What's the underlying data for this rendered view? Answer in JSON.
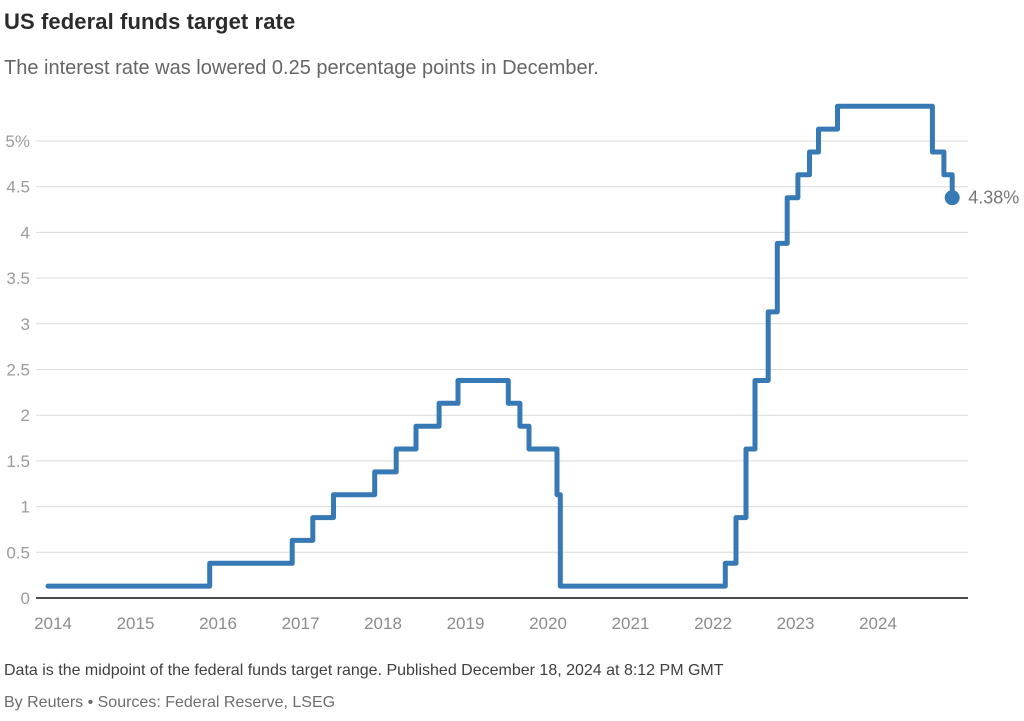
{
  "header": {
    "title": "US federal funds target rate",
    "subtitle": "The interest rate was lowered 0.25 percentage points in December."
  },
  "footer": {
    "note": "Data is the midpoint of the federal funds target range. Published December 18, 2024 at 8:12 PM GMT",
    "byline": "By Reuters • Sources: Federal Reserve, LSEG"
  },
  "colors": {
    "line": "#3679b5",
    "grid": "#d9d9d9",
    "axis": "#4b4b4b",
    "ytick_text": "#9b9b9b",
    "xtick_text": "#8c8c8c",
    "endpoint_text": "#767676"
  },
  "chart_data": {
    "type": "line",
    "variant": "step",
    "title": "US federal funds target rate",
    "subtitle": "The interest rate was lowered 0.25 percentage points in December.",
    "ylabel": "",
    "xlabel": "",
    "unit": "%",
    "ylim": [
      0,
      5.5
    ],
    "xlim": [
      2014,
      2025
    ],
    "grid": "horizontal-only",
    "legend_position": "none",
    "x_ticks": [
      "2014",
      "2015",
      "2016",
      "2017",
      "2018",
      "2019",
      "2020",
      "2021",
      "2022",
      "2023",
      "2024"
    ],
    "y_ticks": [
      {
        "v": 0,
        "label": "0"
      },
      {
        "v": 0.5,
        "label": "0.5"
      },
      {
        "v": 1,
        "label": "1"
      },
      {
        "v": 1.5,
        "label": "1.5"
      },
      {
        "v": 2,
        "label": "2"
      },
      {
        "v": 2.5,
        "label": "2.5"
      },
      {
        "v": 3,
        "label": "3"
      },
      {
        "v": 3.5,
        "label": "3.5"
      },
      {
        "v": 4,
        "label": "4"
      },
      {
        "v": 4.5,
        "label": "4.5"
      },
      {
        "v": 5,
        "label": "5%"
      }
    ],
    "series": [
      {
        "name": "Federal funds target rate (midpoint)",
        "end_year": 2024.96,
        "end_label": "4.38%",
        "steps": [
          {
            "date": "2014-01",
            "year": 2014.0,
            "rate": 0.13
          },
          {
            "date": "2015-12",
            "year": 2015.96,
            "rate": 0.38
          },
          {
            "date": "2016-12",
            "year": 2016.96,
            "rate": 0.63
          },
          {
            "date": "2017-03",
            "year": 2017.21,
            "rate": 0.88
          },
          {
            "date": "2017-06",
            "year": 2017.46,
            "rate": 1.13
          },
          {
            "date": "2017-12",
            "year": 2017.96,
            "rate": 1.38
          },
          {
            "date": "2018-03",
            "year": 2018.22,
            "rate": 1.63
          },
          {
            "date": "2018-06",
            "year": 2018.46,
            "rate": 1.88
          },
          {
            "date": "2018-09",
            "year": 2018.74,
            "rate": 2.13
          },
          {
            "date": "2018-12",
            "year": 2018.97,
            "rate": 2.38
          },
          {
            "date": "2019-08",
            "year": 2019.58,
            "rate": 2.13
          },
          {
            "date": "2019-09",
            "year": 2019.72,
            "rate": 1.88
          },
          {
            "date": "2019-10",
            "year": 2019.83,
            "rate": 1.63
          },
          {
            "date": "2020-03",
            "year": 2020.17,
            "rate": 1.13
          },
          {
            "date": "2020-03",
            "year": 2020.21,
            "rate": 0.13
          },
          {
            "date": "2022-03",
            "year": 2022.21,
            "rate": 0.38
          },
          {
            "date": "2022-05",
            "year": 2022.34,
            "rate": 0.88
          },
          {
            "date": "2022-06",
            "year": 2022.46,
            "rate": 1.63
          },
          {
            "date": "2022-07",
            "year": 2022.57,
            "rate": 2.38
          },
          {
            "date": "2022-09",
            "year": 2022.73,
            "rate": 3.13
          },
          {
            "date": "2022-11",
            "year": 2022.84,
            "rate": 3.88
          },
          {
            "date": "2022-12",
            "year": 2022.96,
            "rate": 4.38
          },
          {
            "date": "2023-02",
            "year": 2023.09,
            "rate": 4.63
          },
          {
            "date": "2023-03",
            "year": 2023.23,
            "rate": 4.88
          },
          {
            "date": "2023-05",
            "year": 2023.34,
            "rate": 5.13
          },
          {
            "date": "2023-07",
            "year": 2023.57,
            "rate": 5.38
          },
          {
            "date": "2024-09",
            "year": 2024.72,
            "rate": 4.88
          },
          {
            "date": "2024-11",
            "year": 2024.86,
            "rate": 4.63
          },
          {
            "date": "2024-12",
            "year": 2024.96,
            "rate": 4.38
          }
        ]
      }
    ]
  }
}
